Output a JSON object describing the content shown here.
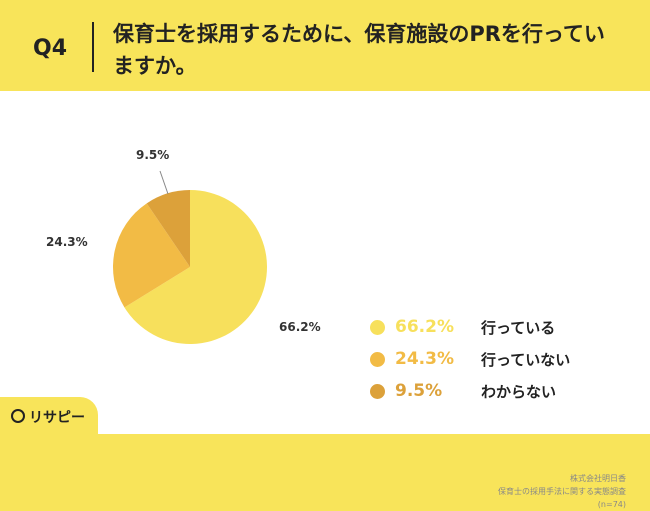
{
  "header": {
    "question_label": "Q4",
    "title": "保育士を採用するために、保育施設のPRを行っていますか。"
  },
  "source": {
    "company": "株式会社明日香",
    "survey": "保育士の採用手法に関する実態調査",
    "sample": "(n=74)"
  },
  "logo": {
    "text": "リサピー",
    "icon": "search-icon"
  },
  "chart_data": {
    "type": "pie",
    "title": "",
    "slices": [
      {
        "label": "行っている",
        "value": 66.2,
        "display": "66.2%",
        "color": "#F7E05C"
      },
      {
        "label": "行っていない",
        "value": 24.3,
        "display": "24.3%",
        "color": "#F2BB45"
      },
      {
        "label": "わからない",
        "value": 9.5,
        "display": "9.5%",
        "color": "#DCA13A"
      }
    ],
    "start_angle_deg": 0,
    "direction": "clockwise",
    "legend_position": "right"
  }
}
